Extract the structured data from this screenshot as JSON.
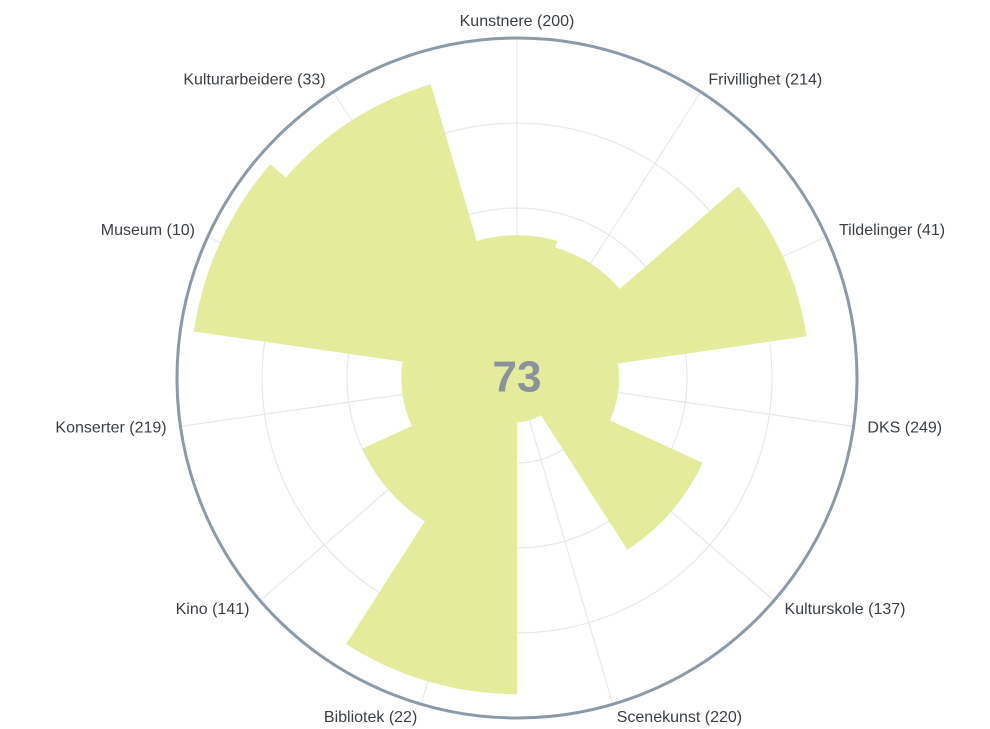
{
  "chart_data": {
    "type": "polar-area",
    "center_label": "73",
    "categories": [
      "Kunstnere (200)",
      "Frivillighet (214)",
      "Tildelinger (41)",
      "DKS (249)",
      "Kulturskole (137)",
      "Scenekunst (220)",
      "Bibliotek (22)",
      "Kino (141)",
      "Konserter (219)",
      "Museum (10)",
      "Kulturarbeidere (33)"
    ],
    "values": [
      42,
      40,
      86,
      30,
      60,
      13,
      93,
      50,
      34,
      96,
      90
    ],
    "color": "#e4eb9b",
    "rlim": [
      0,
      100
    ],
    "rticks": [
      25,
      50,
      75,
      100
    ],
    "grid": true
  }
}
